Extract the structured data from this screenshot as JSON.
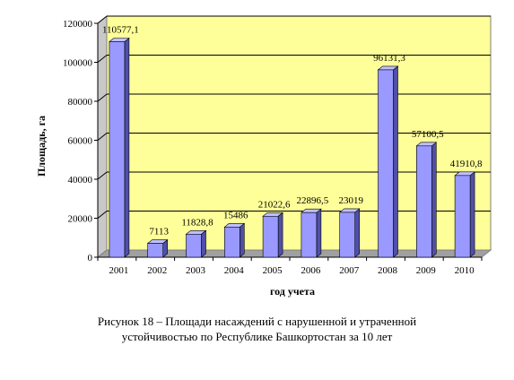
{
  "chart_data": {
    "type": "bar",
    "categories": [
      "2001",
      "2002",
      "2003",
      "2004",
      "2005",
      "2006",
      "2007",
      "2008",
      "2009",
      "2010"
    ],
    "values": [
      110577.1,
      7113,
      11828.8,
      15486,
      21022.6,
      22896.5,
      23019,
      96131.3,
      57100.5,
      41910.8
    ],
    "value_labels": [
      "110577,1",
      "7113",
      "11828,8",
      "15486",
      "21022,6",
      "22896,5",
      "23019",
      "96131,3",
      "57100,5",
      "41910,8"
    ],
    "y_ticks": [
      0,
      20000,
      40000,
      60000,
      80000,
      100000,
      120000
    ],
    "ylim": [
      0,
      120000
    ],
    "xlabel": "год учета",
    "ylabel": "Площадь, га",
    "grid": true,
    "legend": "none",
    "colors": {
      "plot_background": "#ffff99",
      "bar_front": "#9999ff",
      "bar_side": "#5050a8",
      "bar_top": "#c0c0ff",
      "gridline": "#000000",
      "floor": "#a0a0a0"
    }
  },
  "caption": {
    "line1": "Рисунок 18 – Площади насаждений с нарушенной и утраченной",
    "line2": "устойчивостью по Республике Башкортостан за 10 лет"
  }
}
